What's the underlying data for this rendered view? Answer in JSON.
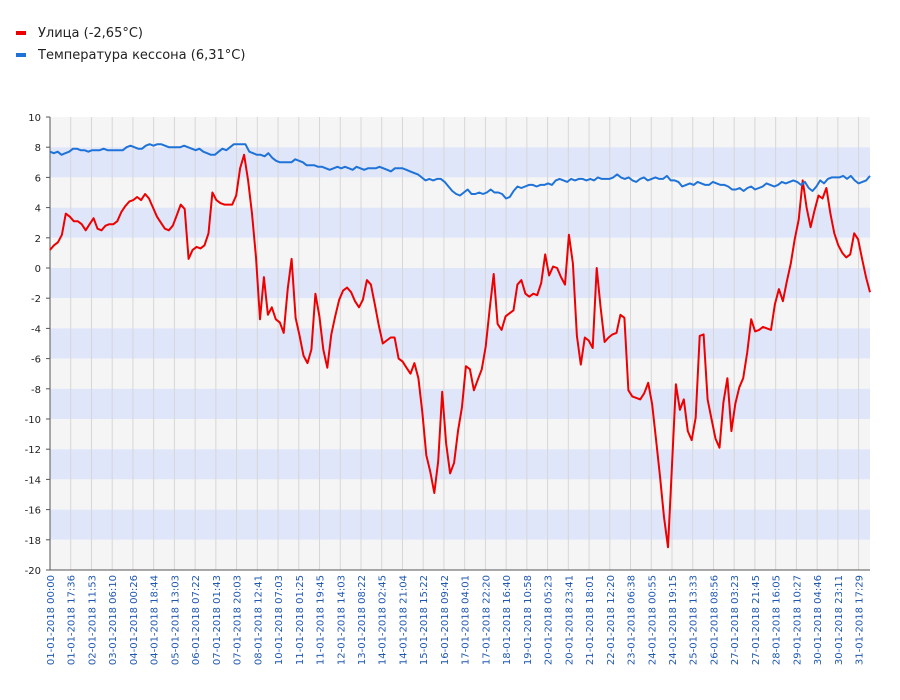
{
  "legend": [
    {
      "label": "Улица (-2,65°C)",
      "color": "#ee0000"
    },
    {
      "label": "Температура кессона (6,31°C)",
      "color": "#1f73d8"
    }
  ],
  "chart_data": {
    "type": "line",
    "title": "",
    "xlabel": "",
    "ylabel": "",
    "ylim": [
      -20,
      10
    ],
    "yticks": [
      10,
      8,
      6,
      4,
      2,
      0,
      -2,
      -4,
      -6,
      -8,
      -10,
      -12,
      -14,
      -16,
      -18,
      -20
    ],
    "band_colors": [
      "#f5f5f5",
      "#e0e6fa"
    ],
    "grid": true,
    "x_tick_labels": [
      "01-01-2018 00:00",
      "01-01-2018 17:36",
      "02-01-2018 11:53",
      "03-01-2018 06:10",
      "04-01-2018 00:26",
      "04-01-2018 18:44",
      "05-01-2018 13:03",
      "06-01-2018 07:22",
      "07-01-2018 01:43",
      "07-01-2018 20:03",
      "08-01-2018 12:41",
      "10-01-2018 07:03",
      "11-01-2018 01:25",
      "11-01-2018 19:45",
      "12-01-2018 14:03",
      "13-01-2018 08:22",
      "14-01-2018 02:45",
      "14-01-2018 21:04",
      "15-01-2018 15:22",
      "16-01-2018 09:42",
      "17-01-2018 04:01",
      "17-01-2018 22:20",
      "18-01-2018 16:40",
      "19-01-2018 10:58",
      "20-01-2018 05:23",
      "20-01-2018 23:41",
      "21-01-2018 18:01",
      "22-01-2018 12:20",
      "23-01-2018 06:38",
      "24-01-2018 00:55",
      "24-01-2018 19:15",
      "25-01-2018 13:33",
      "26-01-2018 08:56",
      "27-01-2018 03:23",
      "27-01-2018 21:45",
      "28-01-2018 16:05",
      "29-01-2018 10:27",
      "30-01-2018 04:46",
      "30-01-2018 23:11",
      "31-01-2018 17:29"
    ],
    "series": [
      {
        "name": "Улица (-2,65°C)",
        "color": "#ee0000",
        "values": [
          1.2,
          1.5,
          1.7,
          2.2,
          3.6,
          3.4,
          3.1,
          3.1,
          2.9,
          2.5,
          2.9,
          3.3,
          2.6,
          2.5,
          2.8,
          2.9,
          2.9,
          3.1,
          3.7,
          4.1,
          4.4,
          4.5,
          4.7,
          4.5,
          4.9,
          4.6,
          4.0,
          3.4,
          3.0,
          2.6,
          2.5,
          2.8,
          3.5,
          4.2,
          3.9,
          0.6,
          1.2,
          1.4,
          1.3,
          1.5,
          2.3,
          5.0,
          4.5,
          4.3,
          4.2,
          4.2,
          4.2,
          4.8,
          6.6,
          7.5,
          5.8,
          3.6,
          0.7,
          -3.4,
          -0.6,
          -3.1,
          -2.6,
          -3.4,
          -3.6,
          -4.3,
          -1.4,
          0.6,
          -3.3,
          -4.5,
          -5.8,
          -6.3,
          -5.4,
          -1.7,
          -3.2,
          -5.4,
          -6.6,
          -4.4,
          -3.2,
          -2.1,
          -1.5,
          -1.3,
          -1.6,
          -2.2,
          -2.6,
          -2.1,
          -0.8,
          -1.1,
          -2.4,
          -3.8,
          -5.0,
          -4.8,
          -4.6,
          -4.6,
          -6.0,
          -6.2,
          -6.6,
          -7.0,
          -6.3,
          -7.3,
          -9.6,
          -12.4,
          -13.5,
          -14.9,
          -12.8,
          -8.2,
          -11.6,
          -13.6,
          -12.9,
          -10.8,
          -9.2,
          -6.5,
          -6.7,
          -8.1,
          -7.4,
          -6.7,
          -5.2,
          -2.7,
          -0.4,
          -3.7,
          -4.1,
          -3.2,
          -3.0,
          -2.8,
          -1.1,
          -0.8,
          -1.7,
          -1.9,
          -1.7,
          -1.8,
          -1.0,
          0.9,
          -0.5,
          0.1,
          0.0,
          -0.6,
          -1.1,
          2.2,
          0.3,
          -4.5,
          -6.4,
          -4.6,
          -4.8,
          -5.3,
          0.0,
          -2.6,
          -4.9,
          -4.6,
          -4.4,
          -4.3,
          -3.1,
          -3.3,
          -8.1,
          -8.5,
          -8.6,
          -8.7,
          -8.3,
          -7.6,
          -9.0,
          -11.4,
          -13.8,
          -16.5,
          -18.5,
          -13.2,
          -7.7,
          -9.4,
          -8.7,
          -10.8,
          -11.4,
          -9.9,
          -4.5,
          -4.4,
          -8.7,
          -10.0,
          -11.3,
          -11.9,
          -8.9,
          -7.3,
          -10.8,
          -9.0,
          -7.9,
          -7.3,
          -5.6,
          -3.4,
          -4.2,
          -4.1,
          -3.9,
          -4.0,
          -4.1,
          -2.4,
          -1.4,
          -2.2,
          -0.9,
          0.3,
          1.9,
          3.2,
          5.8,
          4.0,
          2.7,
          3.8,
          4.8,
          4.6,
          5.3,
          3.6,
          2.3,
          1.5,
          1.0,
          0.7,
          0.9,
          2.3,
          1.9,
          0.6,
          -0.6,
          -1.6
        ]
      },
      {
        "name": "Температура кессона (6,31°C)",
        "color": "#1f73d8",
        "values": [
          7.7,
          7.6,
          7.7,
          7.5,
          7.6,
          7.7,
          7.9,
          7.9,
          7.8,
          7.8,
          7.7,
          7.8,
          7.8,
          7.8,
          7.9,
          7.8,
          7.8,
          7.8,
          7.8,
          7.8,
          8.0,
          8.1,
          8.0,
          7.9,
          7.9,
          8.1,
          8.2,
          8.1,
          8.2,
          8.2,
          8.1,
          8.0,
          8.0,
          8.0,
          8.0,
          8.1,
          8.0,
          7.9,
          7.8,
          7.9,
          7.7,
          7.6,
          7.5,
          7.5,
          7.7,
          7.9,
          7.8,
          8.0,
          8.2,
          8.2,
          8.2,
          8.2,
          7.7,
          7.6,
          7.5,
          7.5,
          7.4,
          7.6,
          7.3,
          7.1,
          7.0,
          7.0,
          7.0,
          7.0,
          7.2,
          7.1,
          7.0,
          6.8,
          6.8,
          6.8,
          6.7,
          6.7,
          6.6,
          6.5,
          6.6,
          6.7,
          6.6,
          6.7,
          6.6,
          6.5,
          6.7,
          6.6,
          6.5,
          6.6,
          6.6,
          6.6,
          6.7,
          6.6,
          6.5,
          6.4,
          6.6,
          6.6,
          6.6,
          6.5,
          6.4,
          6.3,
          6.2,
          6.0,
          5.8,
          5.9,
          5.8,
          5.9,
          5.9,
          5.7,
          5.4,
          5.1,
          4.9,
          4.8,
          5.0,
          5.2,
          4.9,
          4.9,
          5.0,
          4.9,
          5.0,
          5.2,
          5.0,
          5.0,
          4.9,
          4.6,
          4.7,
          5.1,
          5.4,
          5.3,
          5.4,
          5.5,
          5.5,
          5.4,
          5.5,
          5.5,
          5.6,
          5.5,
          5.8,
          5.9,
          5.8,
          5.7,
          5.9,
          5.8,
          5.9,
          5.9,
          5.8,
          5.9,
          5.8,
          6.0,
          5.9,
          5.9,
          5.9,
          6.0,
          6.2,
          6.0,
          5.9,
          6.0,
          5.8,
          5.7,
          5.9,
          6.0,
          5.8,
          5.9,
          6.0,
          5.9,
          5.9,
          6.1,
          5.8,
          5.8,
          5.7,
          5.4,
          5.5,
          5.6,
          5.5,
          5.7,
          5.6,
          5.5,
          5.5,
          5.7,
          5.6,
          5.5,
          5.5,
          5.4,
          5.2,
          5.2,
          5.3,
          5.1,
          5.3,
          5.4,
          5.2,
          5.3,
          5.4,
          5.6,
          5.5,
          5.4,
          5.5,
          5.7,
          5.6,
          5.7,
          5.8,
          5.7,
          5.5,
          5.7,
          5.3,
          5.1,
          5.4,
          5.8,
          5.6,
          5.9,
          6.0,
          6.0,
          6.0,
          6.1,
          5.9,
          6.1,
          5.8,
          5.6,
          5.7,
          5.8,
          6.1
        ]
      }
    ]
  }
}
